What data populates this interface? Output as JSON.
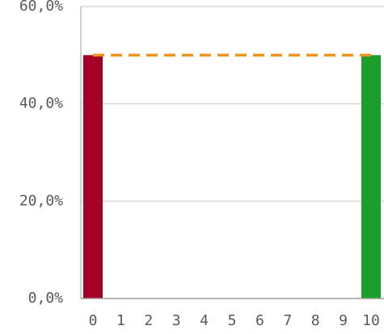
{
  "chart_data": {
    "type": "bar",
    "categories": [
      "0",
      "1",
      "2",
      "3",
      "4",
      "5",
      "6",
      "7",
      "8",
      "9",
      "10"
    ],
    "values": [
      50,
      0,
      0,
      0,
      0,
      0,
      0,
      0,
      0,
      0,
      50
    ],
    "bar_colors": [
      "#a50026",
      null,
      null,
      null,
      null,
      null,
      null,
      null,
      null,
      null,
      "#1a9f2a"
    ],
    "reference_line": {
      "value": 50,
      "color": "#f0921e",
      "style": "dashed"
    },
    "ylim": [
      0,
      60
    ],
    "y_ticks": [
      {
        "value": 0,
        "label": "0,0%"
      },
      {
        "value": 20,
        "label": "20,0%"
      },
      {
        "value": 40,
        "label": "40,0%"
      },
      {
        "value": 60,
        "label": "60,0%"
      }
    ],
    "grid": true,
    "title": "",
    "xlabel": "",
    "ylabel": ""
  }
}
